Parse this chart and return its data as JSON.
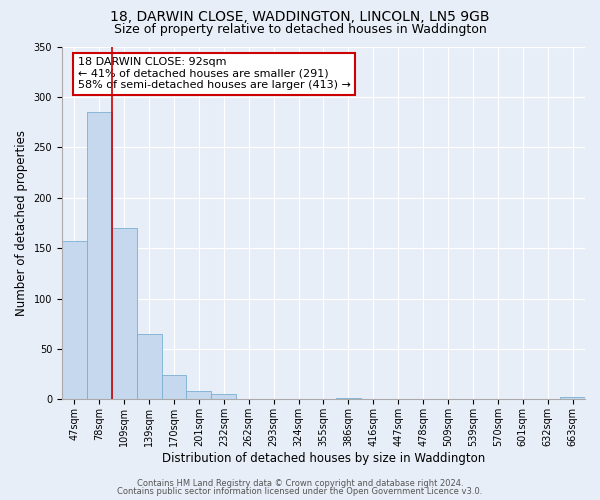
{
  "title": "18, DARWIN CLOSE, WADDINGTON, LINCOLN, LN5 9GB",
  "subtitle": "Size of property relative to detached houses in Waddington",
  "xlabel": "Distribution of detached houses by size in Waddington",
  "ylabel": "Number of detached properties",
  "bar_labels": [
    "47sqm",
    "78sqm",
    "109sqm",
    "139sqm",
    "170sqm",
    "201sqm",
    "232sqm",
    "262sqm",
    "293sqm",
    "324sqm",
    "355sqm",
    "386sqm",
    "416sqm",
    "447sqm",
    "478sqm",
    "509sqm",
    "539sqm",
    "570sqm",
    "601sqm",
    "632sqm",
    "663sqm"
  ],
  "bar_values": [
    157,
    285,
    170,
    65,
    24,
    8,
    5,
    0,
    0,
    0,
    0,
    1,
    0,
    0,
    0,
    0,
    0,
    0,
    0,
    0,
    2
  ],
  "bar_color": "#c5d8ee",
  "bar_edge_color": "#7aafd4",
  "ylim": [
    0,
    350
  ],
  "yticks": [
    0,
    50,
    100,
    150,
    200,
    250,
    300,
    350
  ],
  "red_line_x": 1.5,
  "annotation_title": "18 DARWIN CLOSE: 92sqm",
  "annotation_line1": "← 41% of detached houses are smaller (291)",
  "annotation_line2": "58% of semi-detached houses are larger (413) →",
  "annotation_box_color": "#ffffff",
  "annotation_box_edge": "#cc0000",
  "footer_line1": "Contains HM Land Registry data © Crown copyright and database right 2024.",
  "footer_line2": "Contains public sector information licensed under the Open Government Licence v3.0.",
  "background_color": "#e8eef7",
  "grid_color": "#ffffff",
  "title_fontsize": 10,
  "subtitle_fontsize": 9,
  "axis_label_fontsize": 8.5,
  "tick_fontsize": 7,
  "footer_fontsize": 6,
  "annotation_fontsize": 8,
  "annotation_title_fontsize": 9
}
